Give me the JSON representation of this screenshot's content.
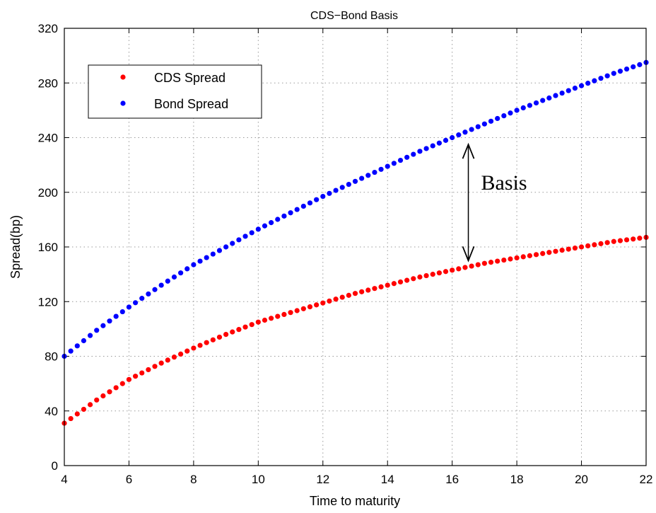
{
  "chart_data": {
    "type": "scatter",
    "title": "CDS−Bond Basis",
    "xlabel": "Time to maturity",
    "ylabel": "Spread(bp)",
    "xlim": [
      4,
      22
    ],
    "ylim": [
      0,
      320
    ],
    "xticks": [
      4,
      6,
      8,
      10,
      12,
      14,
      16,
      18,
      20,
      22
    ],
    "yticks": [
      0,
      40,
      80,
      120,
      160,
      200,
      240,
      280,
      320
    ],
    "grid": true,
    "legend_position": "top-left",
    "series": [
      {
        "name": "CDS Spread",
        "color": "#ff0000",
        "marker": "dot",
        "x": [
          4,
          5,
          6,
          7,
          8,
          9,
          10,
          11,
          12,
          13,
          14,
          15,
          16,
          17,
          18,
          19,
          20,
          21,
          22
        ],
        "y": [
          31,
          48,
          63,
          75,
          86,
          96,
          105,
          112,
          119,
          126,
          132,
          138,
          143,
          148,
          152,
          156,
          160,
          164,
          167
        ]
      },
      {
        "name": "Bond Spread",
        "color": "#0000ff",
        "marker": "dot",
        "x": [
          4,
          5,
          6,
          7,
          8,
          9,
          10,
          11,
          12,
          13,
          14,
          15,
          16,
          17,
          18,
          19,
          20,
          21,
          22
        ],
        "y": [
          80,
          99,
          116,
          132,
          147,
          160,
          173,
          185,
          197,
          208,
          219,
          230,
          240,
          250,
          260,
          269,
          278,
          287,
          295
        ]
      }
    ],
    "annotations": [
      {
        "text": "Basis",
        "x": 16.5,
        "y_from": 235,
        "y_to": 150
      }
    ]
  }
}
